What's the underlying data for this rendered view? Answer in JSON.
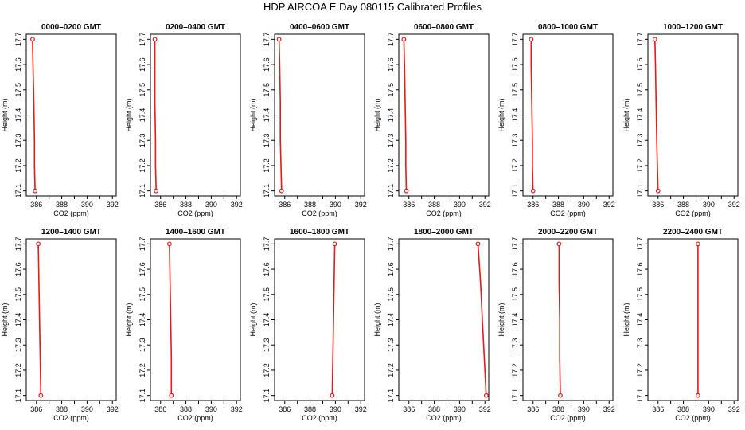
{
  "figure": {
    "title": "HDP  AIRCOA E  Day 080115  Calibrated Profiles"
  },
  "colors": {
    "series": "#e41a1c",
    "frame": "#000000",
    "background": "#ffffff"
  },
  "chart_data": [
    {
      "type": "line",
      "title": "0000–0200 GMT",
      "xlabel": "CO2 (ppm)",
      "ylabel": "Height (m)",
      "xlim": [
        385.2,
        392.3
      ],
      "ylim": [
        17.08,
        17.72
      ],
      "xticks": [
        "386",
        "388",
        "390",
        "392"
      ],
      "yticks": [
        "17.1",
        "17.2",
        "17.3",
        "17.4",
        "17.5",
        "17.6",
        "17.7"
      ],
      "points": [
        {
          "x": 385.7,
          "y": 17.7
        },
        {
          "x": 385.7,
          "y": 17.67
        },
        {
          "x": 385.75,
          "y": 17.55
        },
        {
          "x": 385.8,
          "y": 17.45
        },
        {
          "x": 385.85,
          "y": 17.3
        },
        {
          "x": 385.85,
          "y": 17.2
        },
        {
          "x": 385.9,
          "y": 17.1
        }
      ]
    },
    {
      "type": "line",
      "title": "0200–0400 GMT",
      "xlabel": "CO2 (ppm)",
      "ylabel": "Height (m)",
      "xlim": [
        385.2,
        392.3
      ],
      "ylim": [
        17.08,
        17.72
      ],
      "xticks": [
        "386",
        "388",
        "390",
        "392"
      ],
      "yticks": [
        "17.1",
        "17.2",
        "17.3",
        "17.4",
        "17.5",
        "17.6",
        "17.7"
      ],
      "points": [
        {
          "x": 385.55,
          "y": 17.7
        },
        {
          "x": 385.55,
          "y": 17.6
        },
        {
          "x": 385.55,
          "y": 17.45
        },
        {
          "x": 385.6,
          "y": 17.3
        },
        {
          "x": 385.6,
          "y": 17.2
        },
        {
          "x": 385.65,
          "y": 17.1
        }
      ]
    },
    {
      "type": "line",
      "title": "0400–0600 GMT",
      "xlabel": "CO2 (ppm)",
      "ylabel": "Height (m)",
      "xlim": [
        385.2,
        392.3
      ],
      "ylim": [
        17.08,
        17.72
      ],
      "xticks": [
        "386",
        "388",
        "390",
        "392"
      ],
      "yticks": [
        "17.1",
        "17.2",
        "17.3",
        "17.4",
        "17.5",
        "17.6",
        "17.7"
      ],
      "points": [
        {
          "x": 385.55,
          "y": 17.7
        },
        {
          "x": 385.6,
          "y": 17.6
        },
        {
          "x": 385.65,
          "y": 17.45
        },
        {
          "x": 385.65,
          "y": 17.3
        },
        {
          "x": 385.7,
          "y": 17.2
        },
        {
          "x": 385.75,
          "y": 17.1
        }
      ]
    },
    {
      "type": "line",
      "title": "0600–0800 GMT",
      "xlabel": "CO2 (ppm)",
      "ylabel": "Height (m)",
      "xlim": [
        385.2,
        392.3
      ],
      "ylim": [
        17.08,
        17.72
      ],
      "xticks": [
        "386",
        "388",
        "390",
        "392"
      ],
      "yticks": [
        "17.1",
        "17.2",
        "17.3",
        "17.4",
        "17.5",
        "17.6",
        "17.7"
      ],
      "points": [
        {
          "x": 385.6,
          "y": 17.7
        },
        {
          "x": 385.65,
          "y": 17.6
        },
        {
          "x": 385.7,
          "y": 17.45
        },
        {
          "x": 385.75,
          "y": 17.3
        },
        {
          "x": 385.75,
          "y": 17.2
        },
        {
          "x": 385.8,
          "y": 17.1
        }
      ]
    },
    {
      "type": "line",
      "title": "0800–1000 GMT",
      "xlabel": "CO2 (ppm)",
      "ylabel": "Height (m)",
      "xlim": [
        385.2,
        392.3
      ],
      "ylim": [
        17.08,
        17.72
      ],
      "xticks": [
        "386",
        "388",
        "390",
        "392"
      ],
      "yticks": [
        "17.1",
        "17.2",
        "17.3",
        "17.4",
        "17.5",
        "17.6",
        "17.7"
      ],
      "points": [
        {
          "x": 385.85,
          "y": 17.7
        },
        {
          "x": 385.85,
          "y": 17.6
        },
        {
          "x": 385.9,
          "y": 17.45
        },
        {
          "x": 385.95,
          "y": 17.3
        },
        {
          "x": 385.95,
          "y": 17.2
        },
        {
          "x": 386.0,
          "y": 17.1
        }
      ]
    },
    {
      "type": "line",
      "title": "1000–1200 GMT",
      "xlabel": "CO2 (ppm)",
      "ylabel": "Height (m)",
      "xlim": [
        385.2,
        392.3
      ],
      "ylim": [
        17.08,
        17.72
      ],
      "xticks": [
        "386",
        "388",
        "390",
        "392"
      ],
      "yticks": [
        "17.1",
        "17.2",
        "17.3",
        "17.4",
        "17.5",
        "17.6",
        "17.7"
      ],
      "points": [
        {
          "x": 385.75,
          "y": 17.7
        },
        {
          "x": 385.8,
          "y": 17.6
        },
        {
          "x": 385.85,
          "y": 17.45
        },
        {
          "x": 385.9,
          "y": 17.3
        },
        {
          "x": 385.95,
          "y": 17.2
        },
        {
          "x": 386.0,
          "y": 17.1
        }
      ]
    },
    {
      "type": "line",
      "title": "1200–1400 GMT",
      "xlabel": "CO2 (ppm)",
      "ylabel": "Height (m)",
      "xlim": [
        385.2,
        392.3
      ],
      "ylim": [
        17.08,
        17.72
      ],
      "xticks": [
        "386",
        "388",
        "390",
        "392"
      ],
      "yticks": [
        "17.1",
        "17.2",
        "17.3",
        "17.4",
        "17.5",
        "17.6",
        "17.7"
      ],
      "points": [
        {
          "x": 386.15,
          "y": 17.7
        },
        {
          "x": 386.2,
          "y": 17.55
        },
        {
          "x": 386.25,
          "y": 17.4
        },
        {
          "x": 386.3,
          "y": 17.25
        },
        {
          "x": 386.35,
          "y": 17.1
        }
      ]
    },
    {
      "type": "line",
      "title": "1400–1600 GMT",
      "xlabel": "CO2 (ppm)",
      "ylabel": "Height (m)",
      "xlim": [
        385.2,
        392.3
      ],
      "ylim": [
        17.08,
        17.72
      ],
      "xticks": [
        "386",
        "388",
        "390",
        "392"
      ],
      "yticks": [
        "17.1",
        "17.2",
        "17.3",
        "17.4",
        "17.5",
        "17.6",
        "17.7"
      ],
      "points": [
        {
          "x": 386.7,
          "y": 17.7
        },
        {
          "x": 386.75,
          "y": 17.55
        },
        {
          "x": 386.8,
          "y": 17.4
        },
        {
          "x": 386.85,
          "y": 17.25
        },
        {
          "x": 386.85,
          "y": 17.1
        }
      ]
    },
    {
      "type": "line",
      "title": "1600–1800 GMT",
      "xlabel": "CO2 (ppm)",
      "ylabel": "Height (m)",
      "xlim": [
        385.2,
        392.3
      ],
      "ylim": [
        17.08,
        17.72
      ],
      "xticks": [
        "386",
        "388",
        "390",
        "392"
      ],
      "yticks": [
        "17.1",
        "17.2",
        "17.3",
        "17.4",
        "17.5",
        "17.6",
        "17.7"
      ],
      "points": [
        {
          "x": 389.95,
          "y": 17.7
        },
        {
          "x": 389.9,
          "y": 17.55
        },
        {
          "x": 389.85,
          "y": 17.4
        },
        {
          "x": 389.8,
          "y": 17.25
        },
        {
          "x": 389.75,
          "y": 17.1
        }
      ]
    },
    {
      "type": "line",
      "title": "1800–2000 GMT",
      "xlabel": "CO2 (ppm)",
      "ylabel": "Height (m)",
      "xlim": [
        385.2,
        392.3
      ],
      "ylim": [
        17.08,
        17.72
      ],
      "xticks": [
        "386",
        "388",
        "390",
        "392"
      ],
      "yticks": [
        "17.1",
        "17.2",
        "17.3",
        "17.4",
        "17.5",
        "17.6",
        "17.7"
      ],
      "points": [
        {
          "x": 391.45,
          "y": 17.7
        },
        {
          "x": 391.65,
          "y": 17.55
        },
        {
          "x": 391.8,
          "y": 17.4
        },
        {
          "x": 391.95,
          "y": 17.25
        },
        {
          "x": 392.1,
          "y": 17.1
        }
      ]
    },
    {
      "type": "line",
      "title": "2000–2200 GMT",
      "xlabel": "CO2 (ppm)",
      "ylabel": "Height (m)",
      "xlim": [
        385.2,
        392.3
      ],
      "ylim": [
        17.08,
        17.72
      ],
      "xticks": [
        "386",
        "388",
        "390",
        "392"
      ],
      "yticks": [
        "17.1",
        "17.2",
        "17.3",
        "17.4",
        "17.5",
        "17.6",
        "17.7"
      ],
      "points": [
        {
          "x": 388.05,
          "y": 17.7
        },
        {
          "x": 388.05,
          "y": 17.55
        },
        {
          "x": 388.1,
          "y": 17.4
        },
        {
          "x": 388.1,
          "y": 17.25
        },
        {
          "x": 388.15,
          "y": 17.1
        }
      ]
    },
    {
      "type": "line",
      "title": "2200–2400 GMT",
      "xlabel": "CO2 (ppm)",
      "ylabel": "Height (m)",
      "xlim": [
        385.2,
        392.3
      ],
      "ylim": [
        17.08,
        17.72
      ],
      "xticks": [
        "386",
        "388",
        "390",
        "392"
      ],
      "yticks": [
        "17.1",
        "17.2",
        "17.3",
        "17.4",
        "17.5",
        "17.6",
        "17.7"
      ],
      "points": [
        {
          "x": 389.15,
          "y": 17.7
        },
        {
          "x": 389.15,
          "y": 17.55
        },
        {
          "x": 389.15,
          "y": 17.4
        },
        {
          "x": 389.15,
          "y": 17.25
        },
        {
          "x": 389.15,
          "y": 17.1
        }
      ]
    }
  ]
}
